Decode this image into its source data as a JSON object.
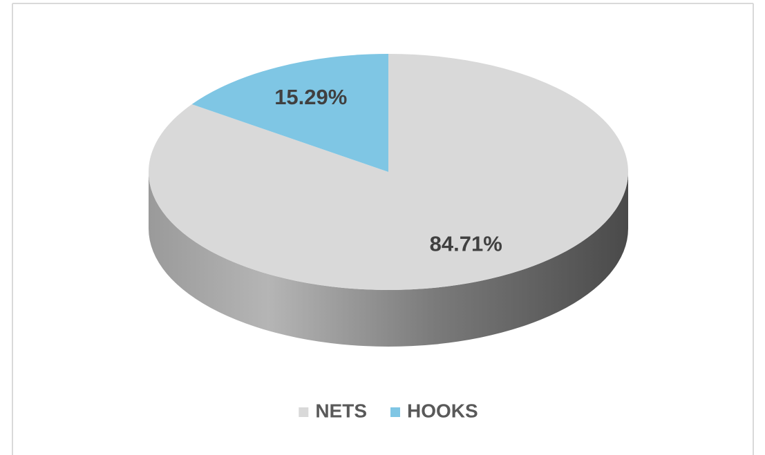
{
  "chart_data": {
    "type": "pie",
    "categories": [
      "NETS",
      "HOOKS"
    ],
    "values": [
      84.71,
      15.29
    ],
    "value_labels": [
      "84.71%",
      "15.29%"
    ],
    "colors": [
      "#d9d9d9",
      "#7fc6e4"
    ],
    "legend": "bottom"
  }
}
